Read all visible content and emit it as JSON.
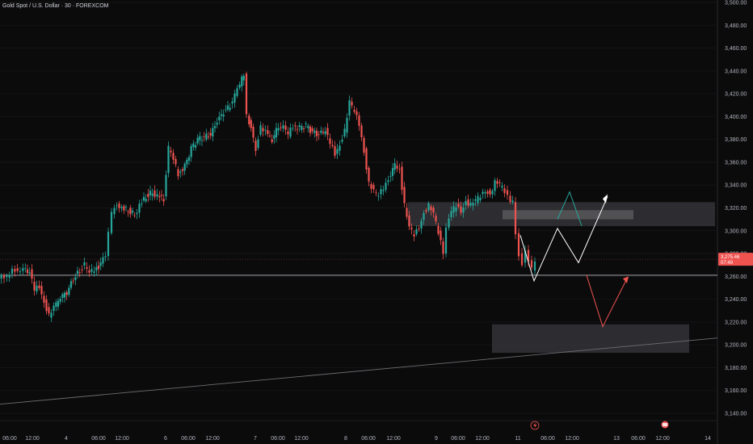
{
  "chart_title": "Gold Spot / U.S. Dollar · 30 · FOREXCOM",
  "colors": {
    "bg": "#0b0b0c",
    "up": "#26a69a",
    "down": "#ef5350",
    "axis": "#b2b5be",
    "zone": "#6b6b6e"
  },
  "price_badge": {
    "price": "3,275.46",
    "countdown": "07:49"
  },
  "chart_data": {
    "type": "candlestick",
    "title": "Gold Spot / U.S. Dollar · 30 · FOREXCOM",
    "ylim": [
      3140,
      3500
    ],
    "y_ticks": [
      "3,140.00",
      "3,160.00",
      "3,180.00",
      "3,200.00",
      "3,220.00",
      "3,240.00",
      "3,260.00",
      "3,280.00",
      "3,300.00",
      "3,320.00",
      "3,340.00",
      "3,360.00",
      "3,380.00",
      "3,400.00",
      "3,420.00",
      "3,440.00",
      "3,460.00",
      "3,480.00",
      "3,500.00"
    ],
    "x_ticks": [
      "06:00",
      "12:00",
      "4",
      "06:00",
      "12:00",
      "6",
      "06:00",
      "12:00",
      "7",
      "06:00",
      "12:00",
      "8",
      "06:00",
      "12:00",
      "9",
      "06:00",
      "12:00",
      "11",
      "06:00",
      "12:00",
      "13",
      "06:00",
      "12:00",
      "14"
    ],
    "close_path": [
      [
        0,
        3258
      ],
      [
        10,
        3261
      ],
      [
        20,
        3266
      ],
      [
        30,
        3265
      ],
      [
        38,
        3264
      ],
      [
        44,
        3248
      ],
      [
        50,
        3252
      ],
      [
        56,
        3238
      ],
      [
        62,
        3226
      ],
      [
        68,
        3232
      ],
      [
        76,
        3242
      ],
      [
        84,
        3246
      ],
      [
        92,
        3258
      ],
      [
        100,
        3265
      ],
      [
        106,
        3270
      ],
      [
        112,
        3262
      ],
      [
        118,
        3266
      ],
      [
        126,
        3270
      ],
      [
        132,
        3280
      ],
      [
        136,
        3300
      ],
      [
        140,
        3316
      ],
      [
        146,
        3324
      ],
      [
        152,
        3320
      ],
      [
        160,
        3318
      ],
      [
        168,
        3314
      ],
      [
        174,
        3322
      ],
      [
        182,
        3330
      ],
      [
        190,
        3334
      ],
      [
        196,
        3330
      ],
      [
        204,
        3328
      ],
      [
        210,
        3372
      ],
      [
        216,
        3362
      ],
      [
        222,
        3350
      ],
      [
        230,
        3356
      ],
      [
        238,
        3372
      ],
      [
        246,
        3380
      ],
      [
        254,
        3382
      ],
      [
        262,
        3384
      ],
      [
        270,
        3396
      ],
      [
        278,
        3404
      ],
      [
        286,
        3410
      ],
      [
        292,
        3418
      ],
      [
        298,
        3428
      ],
      [
        303,
        3438
      ],
      [
        307,
        3400
      ],
      [
        312,
        3390
      ],
      [
        318,
        3372
      ],
      [
        324,
        3392
      ],
      [
        330,
        3386
      ],
      [
        338,
        3380
      ],
      [
        346,
        3392
      ],
      [
        352,
        3390
      ],
      [
        358,
        3384
      ],
      [
        364,
        3392
      ],
      [
        372,
        3390
      ],
      [
        380,
        3392
      ],
      [
        388,
        3386
      ],
      [
        396,
        3384
      ],
      [
        404,
        3388
      ],
      [
        410,
        3376
      ],
      [
        416,
        3368
      ],
      [
        422,
        3376
      ],
      [
        428,
        3388
      ],
      [
        434,
        3412
      ],
      [
        440,
        3404
      ],
      [
        446,
        3394
      ],
      [
        452,
        3370
      ],
      [
        458,
        3342
      ],
      [
        464,
        3334
      ],
      [
        470,
        3330
      ],
      [
        476,
        3338
      ],
      [
        482,
        3346
      ],
      [
        490,
        3358
      ],
      [
        496,
        3354
      ],
      [
        502,
        3322
      ],
      [
        508,
        3302
      ],
      [
        514,
        3296
      ],
      [
        520,
        3304
      ],
      [
        526,
        3316
      ],
      [
        532,
        3322
      ],
      [
        538,
        3314
      ],
      [
        544,
        3298
      ],
      [
        550,
        3282
      ],
      [
        554,
        3304
      ],
      [
        560,
        3316
      ],
      [
        566,
        3322
      ],
      [
        572,
        3318
      ],
      [
        578,
        3326
      ],
      [
        584,
        3322
      ],
      [
        590,
        3326
      ],
      [
        596,
        3330
      ],
      [
        602,
        3336
      ],
      [
        608,
        3332
      ],
      [
        614,
        3342
      ],
      [
        620,
        3340
      ],
      [
        626,
        3334
      ],
      [
        630,
        3330
      ],
      [
        636,
        3324
      ],
      [
        640,
        3296
      ],
      [
        644,
        3278
      ],
      [
        648,
        3270
      ],
      [
        652,
        3282
      ],
      [
        656,
        3274
      ],
      [
        660,
        3266
      ],
      [
        664,
        3275
      ]
    ]
  }
}
